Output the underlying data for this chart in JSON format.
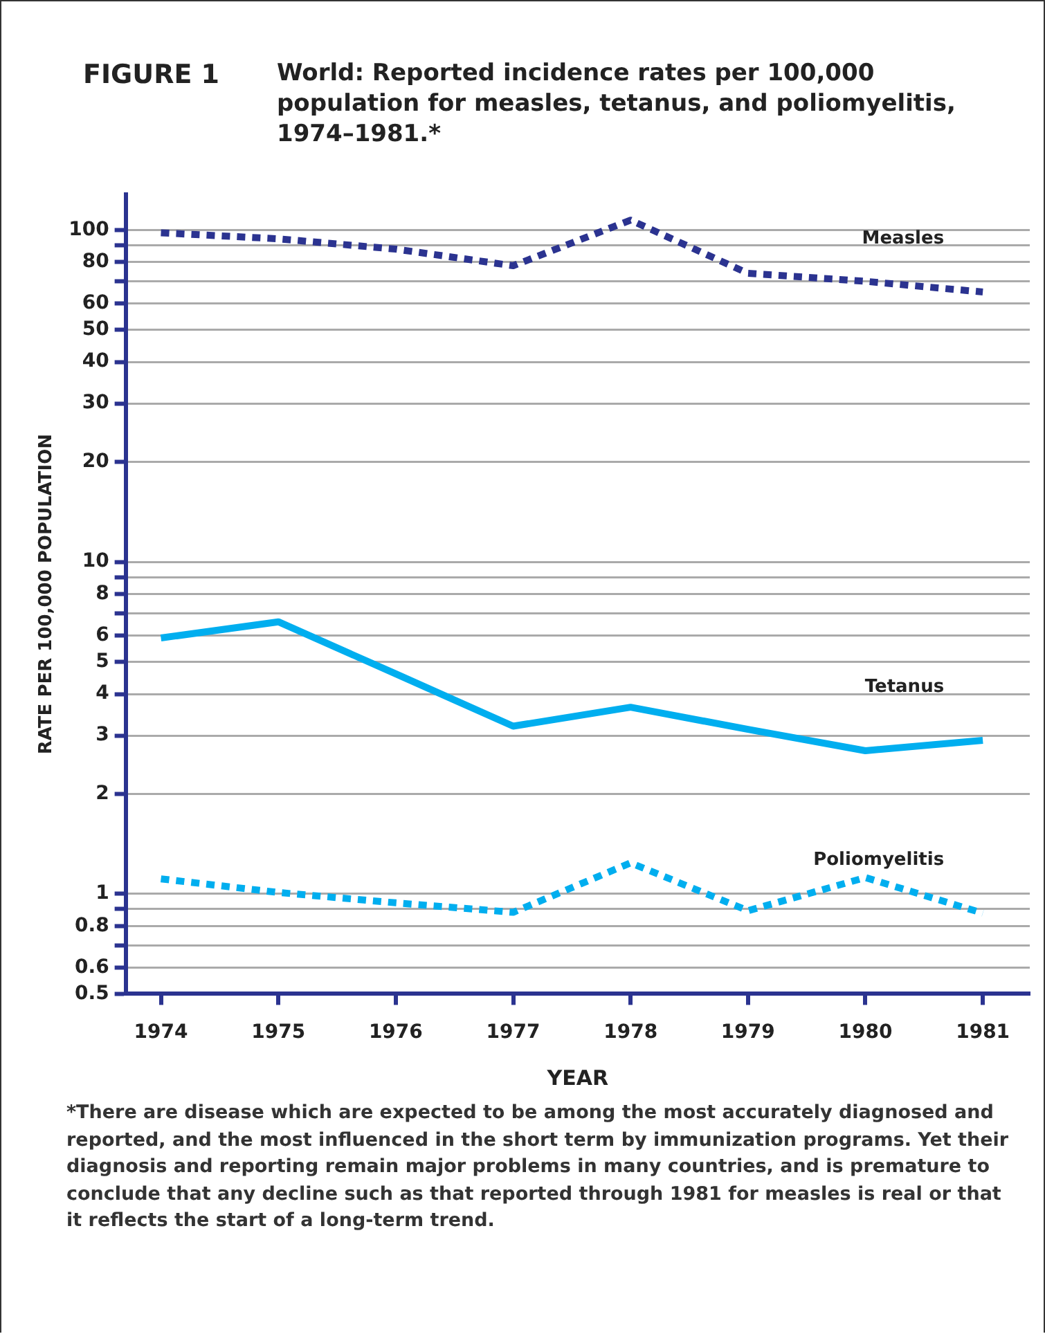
{
  "chart_data": {
    "type": "line",
    "title": "World: Reported incidence rates per 100,000 population for measles, tetanus, and poliomyelitis, 1974–1981.*",
    "xlabel": "YEAR",
    "ylabel": "RATE PER 100,000 POPULATION",
    "annotations": [
      "FIGURE 1",
      "*There are disease which are expected to be among the most accurately diagnosed and reported, and the most influenced in the short term by immunization programs. Yet their diagnosis and reporting remain major problems in many countries, and is premature to conclude that any decline such as that reported through 1981 for measles is real or that it reflects the start of a long-term trend."
    ],
    "x": [
      1974,
      1975,
      1976,
      1977,
      1978,
      1979,
      1980,
      1981
    ],
    "xlim": [
      1973.7,
      1981.4
    ],
    "xticks": [
      1974,
      1975,
      1976,
      1977,
      1978,
      1979,
      1980,
      1981
    ],
    "log": "y",
    "ylim": [
      0.5,
      128
    ],
    "yticks": [
      0.5,
      0.6,
      {
        "value": 0.7,
        "label": null
      },
      0.8,
      {
        "value": 0.9,
        "label": null
      },
      1,
      2,
      3,
      4,
      5,
      6,
      {
        "value": 7,
        "label": null
      },
      8,
      {
        "value": 9,
        "label": null
      },
      10,
      20,
      30,
      40,
      50,
      60,
      {
        "value": 70,
        "label": null
      },
      80,
      {
        "value": 90,
        "label": null
      },
      100
    ],
    "grid": "y",
    "legend": false,
    "marker": "none",
    "series": [
      {
        "name": "Measles",
        "color": "#2b3390",
        "line_style": "dotted",
        "values": [
          98,
          94,
          87.5,
          78,
          107,
          74,
          70,
          65
        ]
      },
      {
        "name": "Tetanus",
        "color": "#00aeef",
        "line_style": "solid",
        "values": [
          5.9,
          6.6,
          4.6,
          3.2,
          3.65,
          3.13,
          2.7,
          2.9
        ]
      },
      {
        "name": "Poliomyelitis",
        "color": "#00aeef",
        "line_style": "dotted",
        "values": [
          1.11,
          1.01,
          0.94,
          0.88,
          1.24,
          0.89,
          1.12,
          0.875
        ]
      }
    ]
  }
}
